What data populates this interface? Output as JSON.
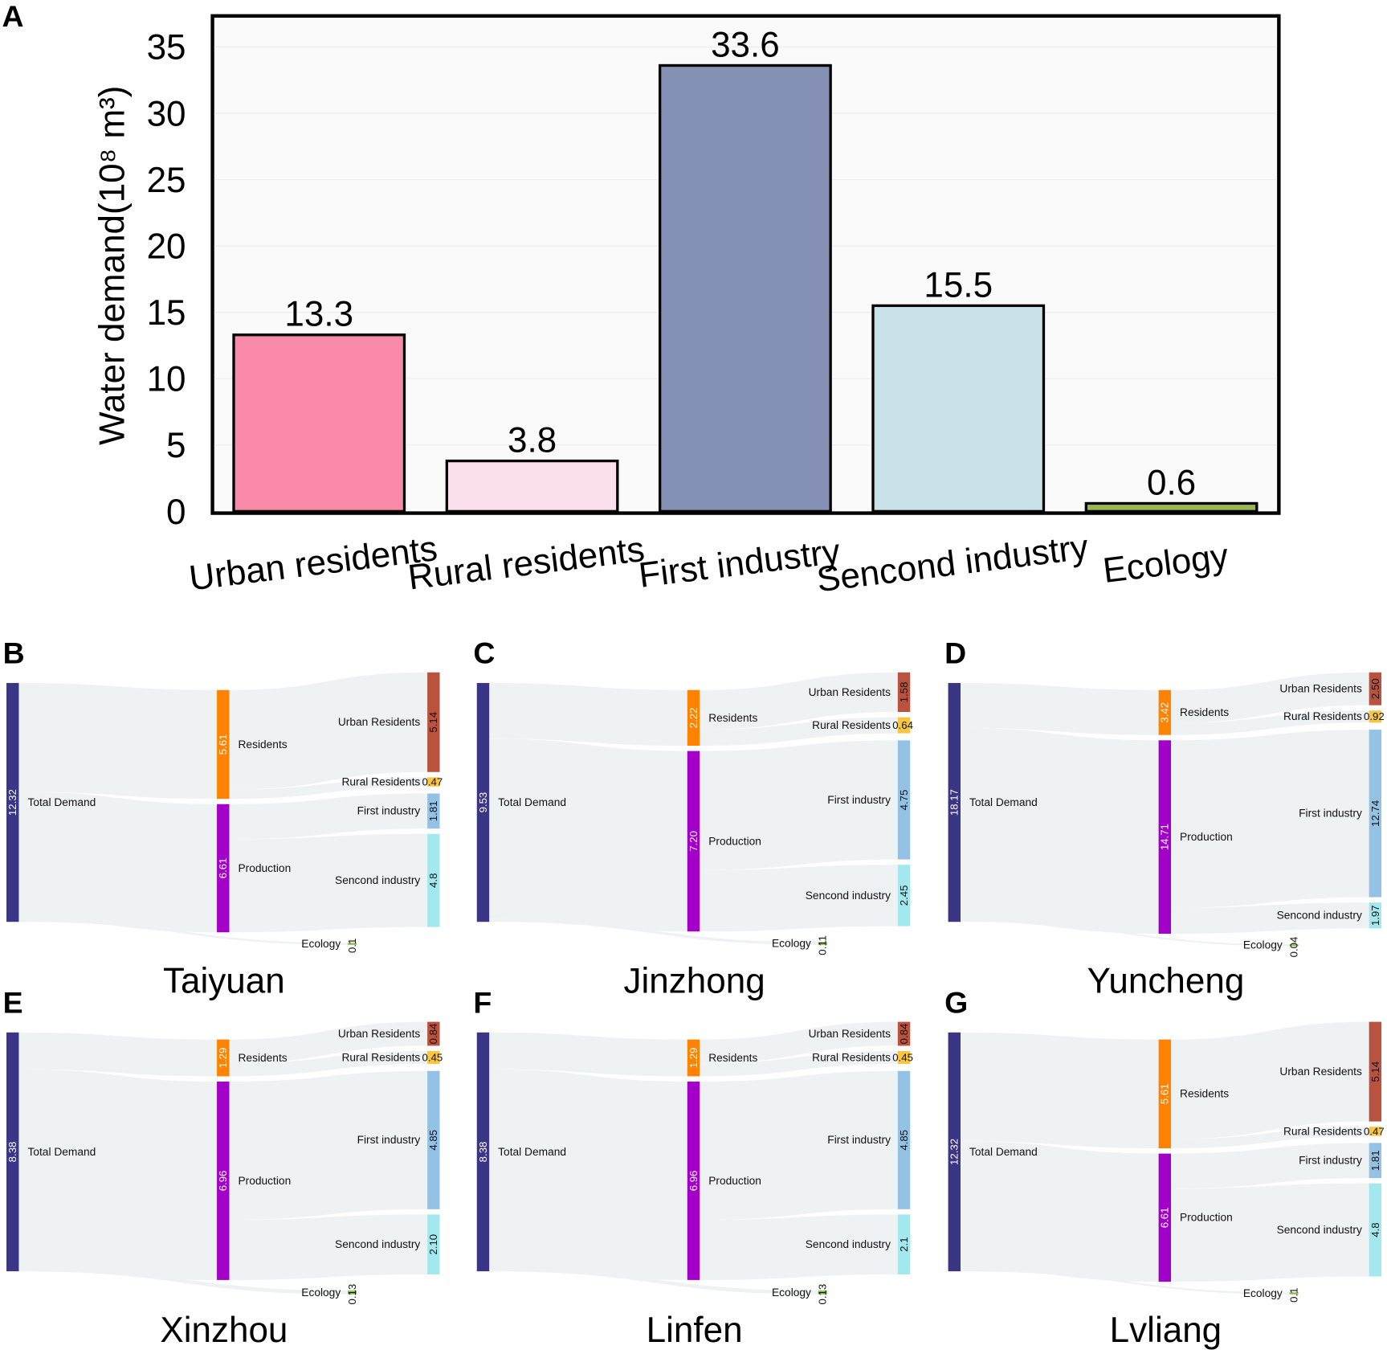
{
  "chart_data": [
    {
      "type": "bar",
      "panel_label": "A",
      "title": "",
      "xlabel": "",
      "ylabel": "Water demand(10⁸ m³)",
      "ylim": [
        0,
        35
      ],
      "yticks": [
        "0",
        "5",
        "10",
        "15",
        "20",
        "25",
        "30",
        "35"
      ],
      "categories": [
        "Urban residents",
        "Rural residents",
        "First industry",
        "Sencond industry",
        "Ecology"
      ],
      "values": [
        13.3,
        3.8,
        33.6,
        15.5,
        0.6
      ],
      "value_labels": [
        "13.3",
        "3.8",
        "33.6",
        "15.5",
        "0.6"
      ],
      "colors": [
        "#f98aaa",
        "#fcdfed",
        "#8591b4",
        "#c9e1e8",
        "#9ab64f"
      ]
    },
    {
      "type": "sankey",
      "node_names": {
        "total": "Total Demand",
        "residents": "Residents",
        "production": "Production",
        "urban": "Urban Residents",
        "rural": "Rural Residents",
        "first": "First industry",
        "second": "Sencond industry",
        "ecology": "Ecology"
      },
      "node_colors": {
        "total": "#3b3585",
        "residents": "#ff8200",
        "production": "#a200c8",
        "urban": "#b9533f",
        "rural": "#f9c542",
        "first": "#94c2e4",
        "second": "#a3e8ee",
        "ecology": "#7fc241"
      },
      "panels": [
        {
          "letter": "B",
          "city": "Taiyuan",
          "total": "12.32",
          "residents": "5.61",
          "production": "6.61",
          "urban": "5.14",
          "rural": "0.47",
          "first": "1.81",
          "second": "4.8",
          "ecology": "0.1"
        },
        {
          "letter": "C",
          "city": "Jinzhong",
          "total": "9.53",
          "residents": "2.22",
          "production": "7.20",
          "urban": "1.58",
          "rural": "0.64",
          "first": "4.75",
          "second": "2.45",
          "ecology": "0.11"
        },
        {
          "letter": "D",
          "city": "Yuncheng",
          "total": "18.17",
          "residents": "3.42",
          "production": "14.71",
          "urban": "2.50",
          "rural": "0.92",
          "first": "12.74",
          "second": "1.97",
          "ecology": "0.04"
        },
        {
          "letter": "E",
          "city": "Xinzhou",
          "total": "8.38",
          "residents": "1.29",
          "production": "6.96",
          "urban": "0.84",
          "rural": "0.45",
          "first": "4.85",
          "second": "2.10",
          "ecology": "0.13"
        },
        {
          "letter": "F",
          "city": "Linfen",
          "total": "8.38",
          "residents": "1.29",
          "production": "6.96",
          "urban": "0.84",
          "rural": "0.45",
          "first": "4.85",
          "second": "2.1",
          "ecology": "0.13"
        },
        {
          "letter": "G",
          "city": "Lvliang",
          "total": "12.32",
          "residents": "5.61",
          "production": "6.61",
          "urban": "5.14",
          "rural": "0.47",
          "first": "1.81",
          "second": "4.8",
          "ecology": "0.1"
        }
      ]
    }
  ]
}
